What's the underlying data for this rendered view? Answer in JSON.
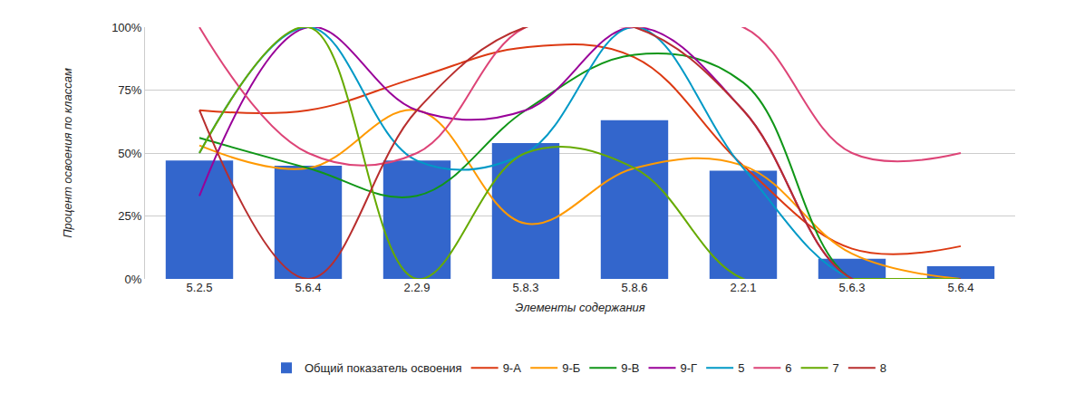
{
  "chart_data": {
    "type": "bar",
    "x_label": "Элементы содержания",
    "y_label": "Процент освоения по классам",
    "categories": [
      "5.2.5",
      "5.6.4",
      "2.2.9",
      "5.8.3",
      "5.8.6",
      "2.2.1",
      "5.6.3",
      "5.6.4"
    ],
    "ylim": [
      0,
      100
    ],
    "yticks": [
      {
        "value": 0,
        "label": "0%"
      },
      {
        "value": 25,
        "label": "25%"
      },
      {
        "value": 50,
        "label": "50%"
      },
      {
        "value": 75,
        "label": "75%"
      },
      {
        "value": 100,
        "label": "100%"
      }
    ],
    "grid": true,
    "legend": "bottom",
    "series": [
      {
        "name": "Общий показатель освоения",
        "type": "bar",
        "color": "#3366cc",
        "values": [
          47,
          45,
          47,
          54,
          63,
          43,
          8,
          5
        ]
      },
      {
        "name": "9-А",
        "type": "line",
        "line_style": "spline",
        "color": "#dc3912",
        "values": [
          67,
          67,
          80,
          92,
          88,
          45,
          12,
          13
        ]
      },
      {
        "name": "9-Б",
        "type": "line",
        "line_style": "spline",
        "color": "#ff9900",
        "values": [
          53,
          44,
          67,
          22,
          44,
          45,
          10,
          0
        ]
      },
      {
        "name": "9-В",
        "type": "line",
        "line_style": "spline",
        "color": "#109618",
        "values": [
          56,
          44,
          33,
          67,
          89,
          78,
          0,
          0
        ]
      },
      {
        "name": "9-Г",
        "type": "line",
        "line_style": "spline",
        "color": "#990099",
        "values": [
          33,
          100,
          67,
          67,
          100,
          67,
          0,
          0
        ]
      },
      {
        "name": "5",
        "type": "line",
        "line_style": "spline",
        "color": "#0099c6",
        "values": [
          50,
          100,
          47,
          50,
          100,
          44,
          0,
          0
        ]
      },
      {
        "name": "6",
        "type": "line",
        "line_style": "spline",
        "color": "#dd4477",
        "values": [
          100,
          50,
          50,
          100,
          100,
          100,
          50,
          50
        ]
      },
      {
        "name": "7",
        "type": "line",
        "line_style": "spline",
        "color": "#66aa00",
        "values": [
          50,
          100,
          0,
          50,
          44,
          0,
          0,
          0
        ]
      },
      {
        "name": "8",
        "type": "line",
        "line_style": "spline",
        "color": "#b82e2e",
        "values": [
          67,
          0,
          67,
          100,
          100,
          67,
          0,
          0
        ]
      }
    ]
  }
}
